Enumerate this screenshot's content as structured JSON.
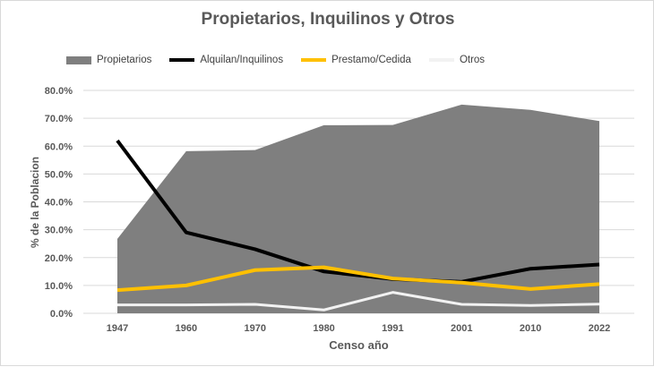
{
  "chart_data": {
    "type": "area+line",
    "title": "Propietarios, Inquilinos y Otros",
    "xlabel": "Censo año",
    "ylabel": "% de la Poblacion",
    "ylim": [
      0,
      80
    ],
    "yticks": [
      "0.0%",
      "10.0%",
      "20.0%",
      "30.0%",
      "40.0%",
      "50.0%",
      "60.0%",
      "70.0%",
      "80.0%"
    ],
    "grid": true,
    "legend_position": "top",
    "categories": [
      "1947",
      "1960",
      "1970",
      "1980",
      "1991",
      "2001",
      "2010",
      "2022"
    ],
    "series": [
      {
        "name": "Propietarios",
        "kind": "area",
        "color": "#7f7f7f",
        "values": [
          26.7,
          58.2,
          58.6,
          67.5,
          67.6,
          74.9,
          73.0,
          69.0
        ]
      },
      {
        "name": "Alquilan/Inquilinos",
        "kind": "line",
        "color": "#000000",
        "values": [
          62.0,
          29.0,
          23.0,
          15.0,
          12.3,
          11.3,
          16.0,
          17.5
        ]
      },
      {
        "name": "Prestamo/Cedida",
        "kind": "line",
        "color": "#ffc000",
        "values": [
          8.3,
          10.0,
          15.5,
          16.5,
          12.5,
          11.0,
          8.7,
          10.5
        ]
      },
      {
        "name": "Otros",
        "kind": "line",
        "color": "#f2f2f2",
        "values": [
          3.0,
          3.0,
          3.2,
          1.2,
          7.5,
          3.2,
          2.8,
          3.3
        ]
      }
    ]
  }
}
